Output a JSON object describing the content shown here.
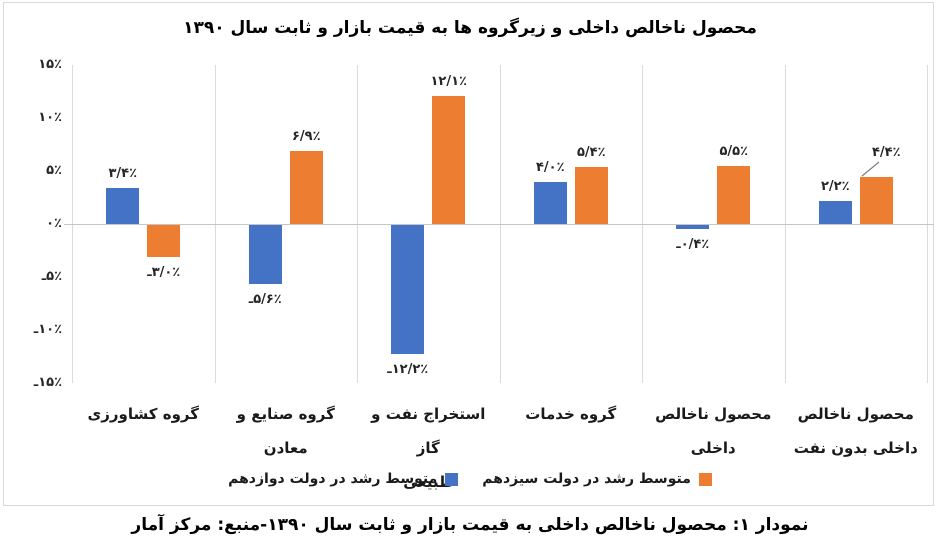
{
  "figure_caption": "نمودار ۱:  محصول ناخالص داخلی به قیمت بازار و ثابت سال ۱۳۹۰-منبع: مرکز آمار",
  "colors": {
    "series_blue": "#4472C4",
    "series_orange": "#ED7D31",
    "gridline": "#D9D9D9",
    "label_text": "#262626"
  },
  "chart_data": {
    "type": "bar",
    "title": "محصول ناخالص داخلی و زیرگروه ها به قیمت بازار و ثابت سال ۱۳۹۰",
    "direction": "rtl",
    "grid": "vertical-category-separators-only",
    "legend_position": "bottom",
    "ylim": [
      -15,
      15
    ],
    "yticks": [
      {
        "value": 15,
        "label": "۱۵٪"
      },
      {
        "value": 10,
        "label": "۱۰٪"
      },
      {
        "value": 5,
        "label": "۵٪"
      },
      {
        "value": 0,
        "label": "۰٪"
      },
      {
        "value": -5,
        "label": "ـ۵٪"
      },
      {
        "value": -10,
        "label": "ـ۱۰٪"
      },
      {
        "value": -15,
        "label": "ـ۱۵٪"
      }
    ],
    "categories": [
      "گروه کشاورزی",
      "گروه صنایع و معادن",
      "استخراج نفت و گاز\nطبیعی",
      "گروه خدمات",
      "محصول ناخالص\nداخلی",
      "محصول ناخالص\nداخلی بدون نفت"
    ],
    "series": [
      {
        "key": "gov12",
        "name": "متوسط رشد در دولت دوازدهم",
        "color": "#4472C4",
        "values": [
          3.4,
          -5.6,
          -12.2,
          4.0,
          -0.4,
          2.2
        ],
        "labels": [
          "۳/۴٪",
          "ـ۵/۶٪",
          "ـ۱۲/۲٪",
          "۴/۰٪",
          "ـ۰/۴٪",
          "۲/۲٪"
        ]
      },
      {
        "key": "gov13",
        "name": "متوسط رشد در دولت سیزدهم",
        "color": "#ED7D31",
        "values": [
          -3.0,
          6.9,
          12.1,
          5.4,
          5.5,
          4.4
        ],
        "labels": [
          "ـ۳/۰٪",
          "۶/۹٪",
          "۱۲/۱٪",
          "۵/۴٪",
          "۵/۵٪",
          "۴/۴٪"
        ]
      }
    ]
  }
}
